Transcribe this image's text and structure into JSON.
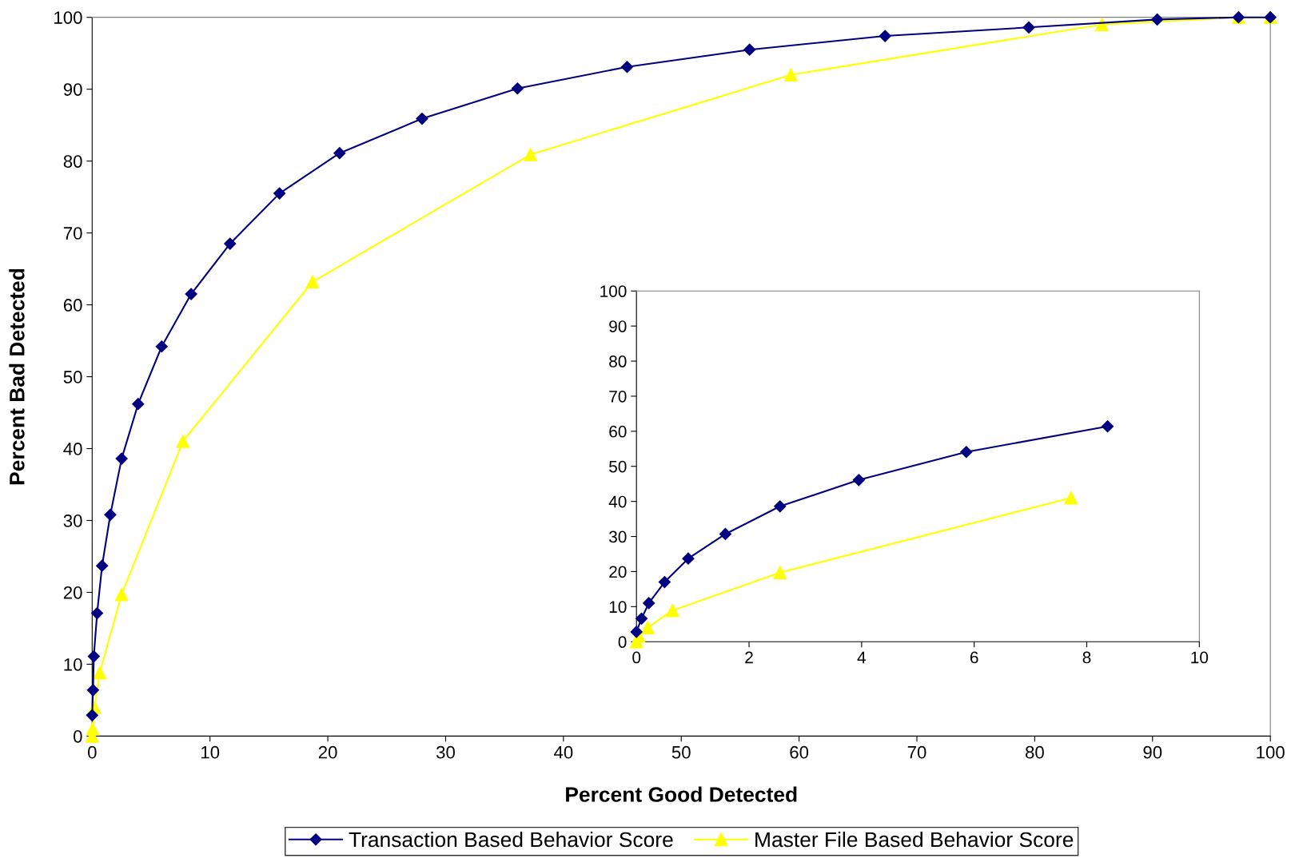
{
  "chart_data": [
    {
      "type": "line",
      "xlabel": "Percent Good Detected",
      "ylabel": "Percent Bad Detected",
      "xlim": [
        0,
        100
      ],
      "ylim": [
        0,
        100
      ],
      "xticks": [
        0,
        10,
        20,
        30,
        40,
        50,
        60,
        70,
        80,
        90,
        100
      ],
      "yticks": [
        0,
        10,
        20,
        30,
        40,
        50,
        60,
        70,
        80,
        90,
        100
      ],
      "grid": false,
      "legend": "bottom",
      "series": [
        {
          "name": "Transaction Based Behavior Score",
          "color": "#000080",
          "marker": "diamond",
          "x": [
            0,
            0.07,
            0.14,
            0.42,
            0.84,
            1.54,
            2.5,
            3.9,
            5.9,
            8.4,
            11.7,
            15.9,
            21.0,
            28.0,
            36.1,
            45.4,
            55.8,
            67.3,
            79.5,
            90.4,
            97.3,
            100
          ],
          "values": [
            2.9,
            6.4,
            11.1,
            17.1,
            23.7,
            30.8,
            38.6,
            46.2,
            54.2,
            61.5,
            68.5,
            75.5,
            81.1,
            85.9,
            90.1,
            93.1,
            95.5,
            97.4,
            98.6,
            99.7,
            100,
            100
          ]
        },
        {
          "name": "Master File Based Behavior Score",
          "color": "#ffff00",
          "marker": "triangle",
          "x": [
            0,
            0.04,
            0.2,
            0.64,
            2.5,
            7.7,
            18.7,
            37.2,
            59.3,
            85.7,
            97.3,
            100
          ],
          "values": [
            0,
            1.0,
            4.0,
            8.8,
            19.7,
            41.0,
            63.2,
            80.9,
            92.0,
            99.0,
            100,
            100
          ]
        }
      ]
    },
    {
      "type": "line",
      "xlim": [
        0,
        10
      ],
      "ylim": [
        0,
        100
      ],
      "xticks": [
        0,
        2,
        4,
        6,
        8,
        10
      ],
      "yticks": [
        0,
        10,
        20,
        30,
        40,
        50,
        60,
        70,
        80,
        90,
        100
      ],
      "grid": false,
      "legend": false,
      "series": [
        {
          "color": "#000080",
          "marker": "diamond",
          "x": [
            0,
            0.09,
            0.22,
            0.5,
            0.92,
            1.58,
            2.55,
            3.95,
            5.86,
            8.37
          ],
          "values": [
            2.8,
            6.6,
            11.0,
            17.0,
            23.7,
            30.7,
            38.6,
            46.1,
            54.1,
            61.4
          ]
        },
        {
          "color": "#ffff00",
          "marker": "triangle",
          "x": [
            0,
            0.04,
            0.2,
            0.64,
            2.55,
            7.72
          ],
          "values": [
            0,
            1.6,
            4.0,
            8.9,
            19.7,
            41.0
          ]
        }
      ]
    }
  ]
}
